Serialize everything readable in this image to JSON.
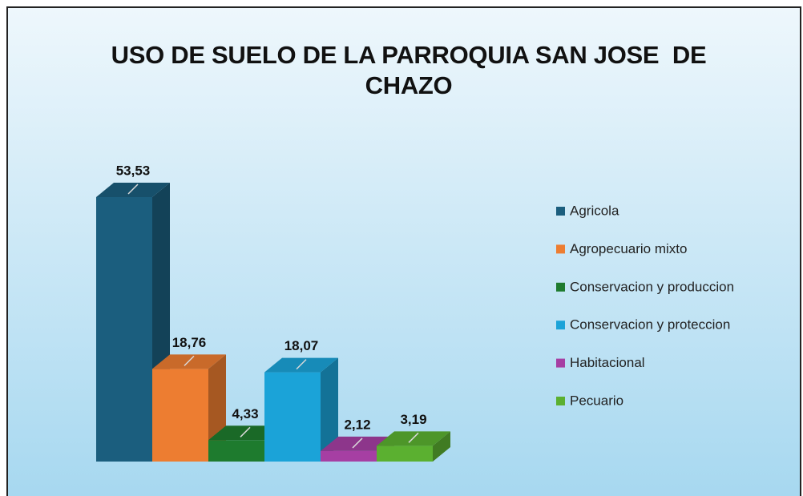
{
  "chart_data": {
    "type": "bar3d",
    "title": "USO DE SUELO DE LA PARROQUIA SAN JOSE  DE CHAZO",
    "series": [
      {
        "name": "Agricola",
        "color": "#1b5e7e",
        "values": [
          53.53
        ],
        "value_labels": [
          "53,53"
        ]
      },
      {
        "name": "Agropecuario mixto",
        "color": "#ed7d31",
        "values": [
          18.76
        ],
        "value_labels": [
          "18,76"
        ]
      },
      {
        "name": "Conservacion y produccion",
        "color": "#1e7b2e",
        "values": [
          4.33
        ],
        "value_labels": [
          "4,33"
        ]
      },
      {
        "name": "Conservacion y proteccion",
        "color": "#1ba3d8",
        "values": [
          18.07
        ],
        "value_labels": [
          "18,07"
        ]
      },
      {
        "name": "Habitacional",
        "color": "#a63fa3",
        "values": [
          2.12
        ],
        "value_labels": [
          "2,12"
        ]
      },
      {
        "name": "Pecuario",
        "color": "#5bb030",
        "values": [
          3.19
        ],
        "value_labels": [
          "3,19"
        ]
      }
    ],
    "legend": "right"
  }
}
